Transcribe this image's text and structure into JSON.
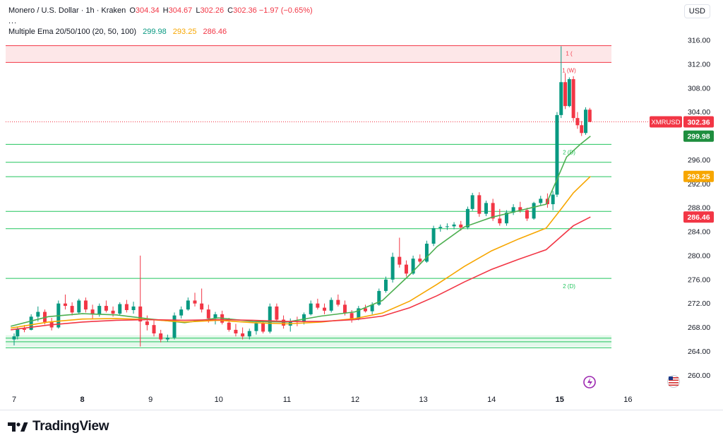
{
  "header": {
    "symbol": "Monero / U.S. Dollar · 1h · Kraken",
    "o_label": "O",
    "o_value": "304.34",
    "h_label": "H",
    "h_value": "304.67",
    "l_label": "L",
    "l_value": "302.26",
    "c_label": "C",
    "c_value": "302.36",
    "change": "−1.97 (−0.65%)",
    "collapse": "...",
    "ema_title": "Multiple Ema 20/50/100 (20, 50, 100)",
    "ema20": "299.98",
    "ema50": "293.25",
    "ema100": "286.46"
  },
  "currency_button": "USD",
  "brand": "TradingView",
  "colors": {
    "up": "#089981",
    "down": "#f23645",
    "ema20": "#4caf50",
    "ema50": "#f7a600",
    "ema100": "#f23645",
    "support": "#22c55e",
    "resistance": "#f23645"
  },
  "chart_data": {
    "type": "candlestick",
    "title": "Monero / U.S. Dollar · 1h · Kraken",
    "ylim": [
      258,
      318
    ],
    "y_ticks": [
      "316.00",
      "312.00",
      "308.00",
      "304.00",
      "300.00",
      "296.00",
      "292.00",
      "288.00",
      "284.00",
      "280.00",
      "276.00",
      "272.00",
      "268.00",
      "264.00",
      "260.00"
    ],
    "x_ticks": [
      "7",
      "8",
      "9",
      "10",
      "11",
      "12",
      "13",
      "14",
      "15",
      "16"
    ],
    "xlim": [
      6.95,
      16.6
    ],
    "price_labels": [
      {
        "name": "XMRUSD",
        "value": "302.36",
        "price": 302.36,
        "color": "#f23645"
      },
      {
        "name": "",
        "value": "299.98",
        "price": 299.98,
        "color": "#1e8e3e"
      },
      {
        "name": "",
        "value": "293.25",
        "price": 293.25,
        "color": "#f7a600"
      },
      {
        "name": "",
        "value": "286.46",
        "price": 286.46,
        "color": "#f23645"
      }
    ],
    "zones": [
      {
        "from": 312.3,
        "to": 315.1,
        "color": "#f23645"
      },
      {
        "from": 264.8,
        "to": 266.7,
        "color": "#22c55e"
      }
    ],
    "levels": [
      {
        "price": 315.1,
        "label": "1 (",
        "color": "#f23645"
      },
      {
        "price": 312.3,
        "label": "1 (W)",
        "color": "#f23645"
      },
      {
        "price": 298.6,
        "label": "2 (D)",
        "color": "#22c55e"
      },
      {
        "price": 295.6,
        "label": "",
        "color": "#22c55e"
      },
      {
        "price": 293.2,
        "label": "",
        "color": "#22c55e"
      },
      {
        "price": 287.4,
        "label": "",
        "color": "#22c55e"
      },
      {
        "price": 284.5,
        "label": "",
        "color": "#22c55e"
      },
      {
        "price": 276.2,
        "label": "2 (D)",
        "color": "#22c55e"
      },
      {
        "price": 266.2,
        "label": "",
        "color": "#22c55e"
      },
      {
        "price": 265.6,
        "label": "",
        "color": "#22c55e"
      },
      {
        "price": 264.6,
        "label": "",
        "color": "#22c55e"
      }
    ],
    "series": [
      {
        "name": "Multiple Ema 20",
        "x": [
          6.95,
          7.5,
          8.0,
          8.5,
          9.0,
          9.5,
          10.0,
          10.5,
          11.0,
          11.5,
          12.0,
          12.4,
          12.8,
          13.2,
          13.6,
          14.0,
          14.4,
          14.8,
          14.95,
          15.1,
          15.3,
          15.45
        ],
        "y": [
          268.2,
          269.8,
          270.3,
          270.1,
          269.4,
          268.8,
          269.6,
          269.0,
          268.9,
          269.9,
          270.6,
          272.5,
          276.8,
          281.5,
          284.8,
          286.4,
          287.5,
          288.6,
          292.5,
          296.5,
          298.6,
          299.98
        ]
      },
      {
        "name": "Multiple Ema 50",
        "x": [
          6.95,
          7.5,
          8.0,
          8.5,
          9.0,
          9.5,
          10.0,
          10.5,
          11.0,
          11.5,
          12.0,
          12.4,
          12.8,
          13.2,
          13.6,
          14.0,
          14.4,
          14.8,
          15.0,
          15.2,
          15.45
        ],
        "y": [
          267.9,
          268.9,
          269.4,
          269.5,
          269.3,
          268.9,
          269.2,
          268.8,
          268.6,
          268.9,
          269.5,
          270.4,
          272.4,
          275.2,
          278.2,
          280.8,
          282.8,
          284.6,
          287.5,
          290.5,
          293.25
        ]
      },
      {
        "name": "Multiple Ema 100",
        "x": [
          6.95,
          7.5,
          8.0,
          8.5,
          9.0,
          9.5,
          10.0,
          10.5,
          11.0,
          11.5,
          12.0,
          12.4,
          12.8,
          13.2,
          13.6,
          14.0,
          14.4,
          14.8,
          15.0,
          15.2,
          15.45
        ],
        "y": [
          267.6,
          268.4,
          268.9,
          269.2,
          269.3,
          269.2,
          269.3,
          269.2,
          269.0,
          269.0,
          269.3,
          269.9,
          271.3,
          273.3,
          275.6,
          277.7,
          279.4,
          281.0,
          283.0,
          285.0,
          286.46
        ]
      }
    ],
    "candles": [
      [
        7.0,
        266.0,
        267.0,
        265.0,
        266.5
      ],
      [
        7.05,
        266.5,
        268.0,
        266.0,
        267.8
      ],
      [
        7.15,
        267.8,
        268.4,
        267.2,
        267.6
      ],
      [
        7.25,
        267.6,
        270.2,
        267.5,
        269.8
      ],
      [
        7.35,
        269.8,
        271.5,
        269.0,
        270.6
      ],
      [
        7.45,
        270.6,
        271.0,
        268.5,
        268.9
      ],
      [
        7.55,
        268.9,
        269.6,
        267.5,
        268.0
      ],
      [
        7.65,
        268.0,
        272.5,
        267.8,
        272.0
      ],
      [
        7.75,
        272.0,
        273.5,
        271.0,
        271.6
      ],
      [
        7.85,
        271.6,
        272.2,
        270.0,
        270.5
      ],
      [
        7.95,
        270.5,
        272.8,
        270.2,
        272.5
      ],
      [
        8.05,
        272.5,
        273.0,
        270.5,
        271.0
      ],
      [
        8.15,
        271.0,
        271.8,
        269.5,
        270.2
      ],
      [
        8.25,
        270.2,
        272.0,
        269.8,
        271.6
      ],
      [
        8.35,
        271.6,
        272.5,
        270.5,
        270.8
      ],
      [
        8.45,
        270.8,
        271.5,
        269.8,
        270.3
      ],
      [
        8.55,
        270.3,
        272.2,
        270.0,
        271.9
      ],
      [
        8.65,
        271.9,
        272.6,
        270.5,
        270.9
      ],
      [
        8.75,
        270.9,
        272.3,
        270.3,
        271.5
      ],
      [
        8.85,
        271.5,
        280.0,
        264.8,
        269.0
      ],
      [
        8.95,
        269.0,
        270.0,
        267.5,
        268.4
      ],
      [
        9.05,
        268.4,
        269.2,
        266.5,
        267.0
      ],
      [
        9.15,
        267.0,
        267.6,
        265.5,
        266.0
      ],
      [
        9.25,
        266.0,
        266.8,
        265.6,
        266.3
      ],
      [
        9.35,
        266.3,
        270.5,
        266.0,
        270.0
      ],
      [
        9.45,
        270.0,
        271.5,
        269.5,
        271.0
      ],
      [
        9.55,
        271.0,
        273.0,
        270.8,
        272.5
      ],
      [
        9.65,
        272.5,
        273.8,
        271.5,
        272.0
      ],
      [
        9.75,
        272.0,
        274.5,
        270.5,
        271.0
      ],
      [
        9.85,
        271.0,
        271.8,
        268.8,
        269.5
      ],
      [
        9.95,
        269.5,
        270.6,
        268.5,
        270.2
      ],
      [
        10.05,
        270.2,
        270.8,
        268.5,
        268.8
      ],
      [
        10.15,
        268.8,
        269.6,
        267.3,
        267.6
      ],
      [
        10.25,
        267.6,
        268.6,
        266.5,
        267.0
      ],
      [
        10.35,
        267.0,
        268.0,
        266.0,
        266.5
      ],
      [
        10.45,
        266.5,
        267.8,
        266.0,
        267.4
      ],
      [
        10.55,
        267.4,
        269.0,
        266.8,
        268.7
      ],
      [
        10.65,
        268.7,
        269.2,
        267.0,
        267.3
      ],
      [
        10.75,
        267.3,
        272.0,
        267.0,
        271.5
      ],
      [
        10.85,
        271.5,
        272.0,
        269.0,
        269.3
      ],
      [
        10.95,
        269.3,
        270.0,
        267.8,
        268.3
      ],
      [
        11.05,
        268.3,
        269.5,
        267.3,
        269.0
      ],
      [
        11.15,
        269.0,
        269.8,
        268.2,
        268.9
      ],
      [
        11.25,
        268.9,
        270.5,
        268.5,
        270.2
      ],
      [
        11.35,
        270.2,
        272.5,
        270.0,
        272.0
      ],
      [
        11.45,
        272.0,
        272.8,
        271.0,
        271.3
      ],
      [
        11.55,
        271.3,
        272.0,
        270.2,
        270.8
      ],
      [
        11.65,
        270.8,
        273.0,
        270.5,
        272.6
      ],
      [
        11.75,
        272.6,
        273.5,
        271.5,
        271.8
      ],
      [
        11.85,
        271.8,
        272.5,
        270.0,
        270.4
      ],
      [
        11.95,
        270.4,
        270.9,
        268.8,
        269.4
      ],
      [
        12.05,
        269.4,
        271.6,
        269.2,
        271.2
      ],
      [
        12.15,
        271.2,
        271.8,
        270.5,
        270.7
      ],
      [
        12.25,
        270.7,
        272.2,
        270.2,
        271.8
      ],
      [
        12.35,
        271.8,
        274.5,
        271.6,
        274.1
      ],
      [
        12.45,
        274.1,
        276.5,
        273.8,
        276.0
      ],
      [
        12.55,
        276.0,
        280.5,
        275.5,
        279.8
      ],
      [
        12.65,
        279.8,
        283.0,
        278.0,
        278.5
      ],
      [
        12.75,
        278.5,
        279.2,
        276.5,
        277.0
      ],
      [
        12.85,
        277.0,
        280.0,
        276.8,
        279.5
      ],
      [
        12.95,
        279.5,
        280.2,
        278.5,
        279.0
      ],
      [
        13.05,
        279.0,
        282.5,
        278.8,
        282.0
      ],
      [
        13.15,
        282.0,
        285.0,
        281.6,
        284.6
      ],
      [
        13.25,
        284.6,
        285.2,
        284.0,
        284.8
      ],
      [
        13.35,
        284.8,
        285.4,
        284.3,
        284.9
      ],
      [
        13.45,
        284.9,
        285.6,
        284.4,
        285.2
      ],
      [
        13.55,
        285.2,
        285.8,
        284.2,
        284.7
      ],
      [
        13.65,
        284.7,
        288.2,
        284.4,
        287.8
      ],
      [
        13.72,
        287.8,
        290.5,
        287.5,
        290.1
      ],
      [
        13.82,
        290.1,
        290.6,
        286.5,
        287.0
      ],
      [
        13.92,
        287.0,
        289.2,
        286.6,
        288.8
      ],
      [
        14.02,
        288.8,
        289.5,
        285.8,
        286.2
      ],
      [
        14.12,
        286.2,
        287.8,
        285.0,
        285.4
      ],
      [
        14.22,
        285.4,
        287.6,
        285.0,
        287.2
      ],
      [
        14.32,
        287.2,
        288.6,
        286.8,
        288.1
      ],
      [
        14.42,
        288.1,
        289.0,
        287.2,
        287.6
      ],
      [
        14.52,
        287.6,
        288.0,
        285.8,
        286.2
      ],
      [
        14.62,
        286.2,
        289.0,
        286.0,
        288.8
      ],
      [
        14.72,
        288.8,
        290.0,
        288.4,
        289.5
      ],
      [
        14.82,
        289.5,
        290.4,
        288.0,
        288.6
      ],
      [
        14.9,
        288.6,
        290.8,
        287.6,
        290.2
      ],
      [
        14.96,
        290.2,
        304.0,
        289.8,
        303.5
      ],
      [
        15.02,
        303.5,
        315.0,
        303.0,
        309.0
      ],
      [
        15.08,
        309.0,
        310.5,
        304.5,
        305.0
      ],
      [
        15.14,
        305.0,
        309.8,
        304.8,
        309.5
      ],
      [
        15.2,
        309.5,
        310.0,
        302.5,
        303.0
      ],
      [
        15.26,
        303.0,
        304.0,
        301.2,
        301.8
      ],
      [
        15.32,
        301.8,
        302.5,
        300.0,
        300.5
      ],
      [
        15.38,
        300.5,
        304.8,
        300.2,
        304.4
      ],
      [
        15.44,
        304.4,
        304.7,
        302.3,
        302.36
      ]
    ]
  }
}
